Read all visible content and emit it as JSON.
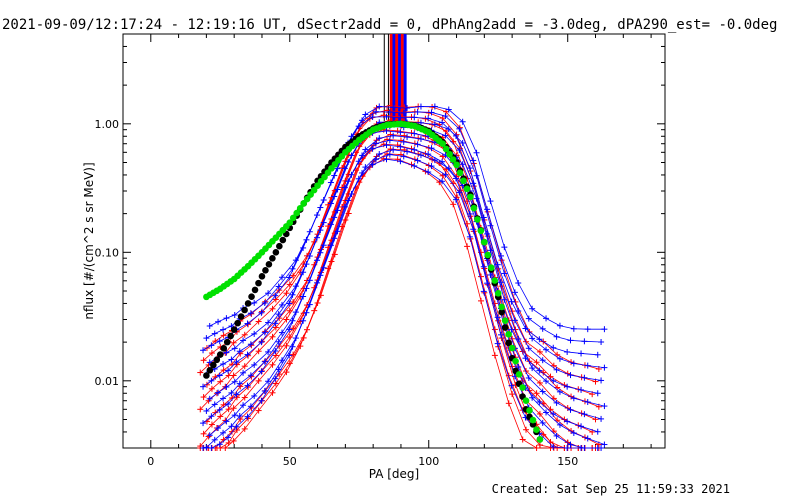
{
  "title": "2021-09-09/12:17:24 - 12:19:16 UT, dSectr2add = 0, dPhAng2add = -3.0deg, dPA290_est= -0.0deg",
  "footer": "Created: Sat Sep 25 11:59:33 2021",
  "chart_data": {
    "type": "scatter",
    "xlabel": "PA [deg]",
    "ylabel": "nflux [#/(cm^2 s sr MeV)]",
    "xlim": [
      -10,
      185
    ],
    "ylim": [
      0.003,
      5.0
    ],
    "yscale": "log",
    "xticks": [
      0,
      50,
      100,
      150
    ],
    "xtick_labels": [
      "0",
      "50",
      "100",
      "150"
    ],
    "yticks": [
      0.01,
      0.1,
      1.0
    ],
    "ytick_labels": [
      "0.01",
      "0.10",
      "1.00"
    ],
    "grid": false,
    "colors": {
      "red": "#ff0000",
      "blue": "#0000ff",
      "green": "#00e000",
      "black": "#000000"
    },
    "series": [
      {
        "color": "red",
        "marker": "+",
        "x": [
          19,
          22,
          25,
          28,
          31,
          35,
          40,
          45,
          50,
          55,
          60,
          65,
          70,
          75,
          80,
          85,
          90,
          95,
          100,
          105,
          110,
          115,
          120,
          125,
          130,
          135,
          140,
          145,
          150,
          155,
          160
        ],
        "values": [
          0.006,
          0.007,
          0.008,
          0.009,
          0.011,
          0.013,
          0.017,
          0.022,
          0.03,
          0.045,
          0.08,
          0.16,
          0.32,
          0.6,
          0.82,
          0.9,
          0.88,
          0.85,
          0.8,
          0.7,
          0.5,
          0.25,
          0.1,
          0.04,
          0.018,
          0.01,
          0.008,
          0.006,
          0.005,
          0.0045,
          0.004
        ]
      },
      {
        "color": "blue",
        "marker": "+",
        "x": [
          20,
          23,
          26,
          29,
          32,
          36,
          41,
          46,
          51,
          56,
          61,
          66,
          71,
          76,
          81,
          86,
          91,
          96,
          101,
          106,
          111,
          116,
          121,
          126,
          131,
          136,
          141,
          146,
          151,
          156,
          162
        ],
        "values": [
          0.009,
          0.01,
          0.011,
          0.012,
          0.014,
          0.016,
          0.02,
          0.028,
          0.04,
          0.07,
          0.13,
          0.24,
          0.45,
          0.7,
          0.85,
          0.88,
          0.86,
          0.84,
          0.8,
          0.72,
          0.55,
          0.3,
          0.12,
          0.05,
          0.025,
          0.015,
          0.012,
          0.01,
          0.009,
          0.0085,
          0.008
        ]
      },
      {
        "color": "black",
        "marker": "dot",
        "x": [
          20,
          25,
          30,
          35,
          40,
          45,
          50,
          55,
          60,
          65,
          70,
          75,
          80,
          85,
          90,
          95,
          100,
          105,
          110,
          115,
          120,
          125,
          130,
          135,
          140
        ],
        "values": [
          0.011,
          0.016,
          0.025,
          0.04,
          0.065,
          0.1,
          0.155,
          0.24,
          0.36,
          0.5,
          0.66,
          0.8,
          0.92,
          0.99,
          1.0,
          0.97,
          0.88,
          0.72,
          0.5,
          0.28,
          0.12,
          0.045,
          0.015,
          0.006,
          0.0035
        ]
      },
      {
        "color": "green",
        "marker": "dot",
        "x": [
          20,
          25,
          30,
          35,
          40,
          45,
          50,
          55,
          60,
          65,
          70,
          75,
          80,
          85,
          90,
          95,
          100,
          105,
          110,
          115,
          120,
          125,
          130,
          135,
          140
        ],
        "values": [
          0.045,
          0.052,
          0.062,
          0.078,
          0.1,
          0.13,
          0.17,
          0.24,
          0.33,
          0.45,
          0.6,
          0.75,
          0.9,
          0.98,
          1.0,
          0.96,
          0.86,
          0.7,
          0.48,
          0.27,
          0.12,
          0.048,
          0.018,
          0.007,
          0.0035
        ]
      }
    ]
  }
}
